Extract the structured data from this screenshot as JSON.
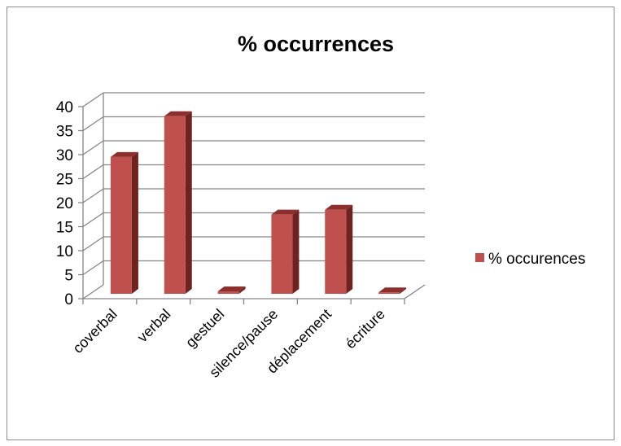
{
  "chart_data": {
    "type": "bar",
    "title": "% occurrences",
    "categories": [
      "coverbal",
      "verbal",
      "gestuel",
      "silence/pause",
      "déplacement",
      "écriture"
    ],
    "series": [
      {
        "name": "% occurences",
        "values": [
          28.5,
          37,
          0.5,
          16.5,
          17.5,
          0.3
        ],
        "color": "#c0504d"
      }
    ],
    "ylim": [
      0,
      40
    ],
    "yticks": [
      "0",
      "5",
      "10",
      "15",
      "20",
      "25",
      "30",
      "35",
      "40"
    ],
    "grid": true,
    "legend": "right",
    "style": "3d-column"
  }
}
